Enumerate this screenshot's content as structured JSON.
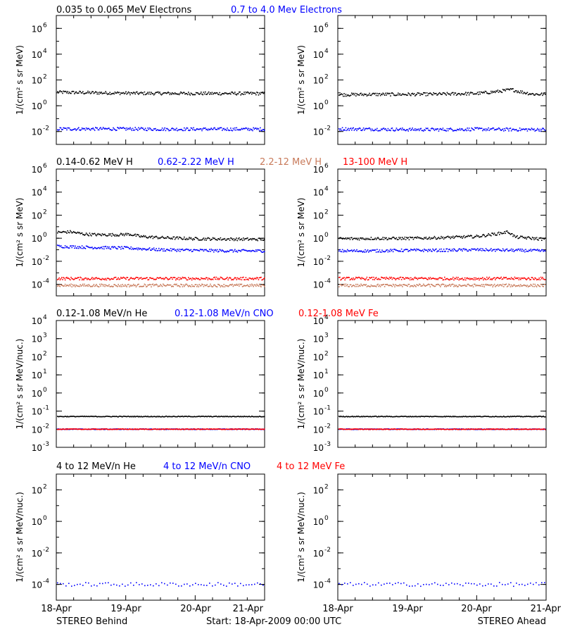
{
  "chart_data": [
    {
      "type": "scatter",
      "row": 0,
      "column": "left",
      "legend": [
        "0.035 to 0.065 MeV Electrons",
        "0.7 to 4.0 Mev Electrons"
      ],
      "ylabel": "1/(cm² s sr MeV)",
      "yscale": "log",
      "ylim_exp": [
        -3,
        7
      ],
      "yticks": [
        {
          "e": -2,
          "label": "10"
        },
        {
          "e": 0,
          "label": "10"
        },
        {
          "e": 2,
          "label": "10"
        },
        {
          "e": 4,
          "label": "10"
        },
        {
          "e": 6,
          "label": "10"
        }
      ],
      "ytick_exponents": [
        "-2",
        "0",
        "2",
        "4",
        "6"
      ],
      "xlim_days": [
        0,
        3
      ],
      "series": [
        {
          "color": "#000000",
          "points": [
            [
              0,
              1.05
            ],
            [
              0.3,
              1.02
            ],
            [
              0.6,
              1.0
            ],
            [
              0.9,
              0.98
            ],
            [
              1.2,
              0.96
            ],
            [
              1.5,
              0.96
            ],
            [
              1.8,
              0.95
            ],
            [
              2.1,
              0.95
            ],
            [
              2.4,
              0.95
            ],
            [
              2.7,
              0.95
            ],
            [
              3.0,
              0.95
            ]
          ]
        },
        {
          "color": "#0000ff",
          "points": [
            [
              0,
              -1.8
            ],
            [
              0.5,
              -1.8
            ],
            [
              1.0,
              -1.8
            ],
            [
              1.5,
              -1.82
            ],
            [
              2.0,
              -1.82
            ],
            [
              2.5,
              -1.82
            ],
            [
              3.0,
              -1.82
            ]
          ]
        }
      ]
    },
    {
      "type": "scatter",
      "row": 0,
      "column": "right",
      "ylabel": "1/(cm² s sr MeV)",
      "yscale": "log",
      "ylim_exp": [
        -3,
        7
      ],
      "yticks": [
        {
          "e": -2,
          "label": "10"
        },
        {
          "e": 0,
          "label": "10"
        },
        {
          "e": 2,
          "label": "10"
        },
        {
          "e": 4,
          "label": "10"
        },
        {
          "e": 6,
          "label": "10"
        }
      ],
      "ytick_exponents": [
        "-2",
        "0",
        "2",
        "4",
        "6"
      ],
      "xlim_days": [
        0,
        3
      ],
      "series": [
        {
          "color": "#000000",
          "points": [
            [
              0,
              0.85
            ],
            [
              0.5,
              0.88
            ],
            [
              1.0,
              0.88
            ],
            [
              1.5,
              0.9
            ],
            [
              2.0,
              0.95
            ],
            [
              2.3,
              1.1
            ],
            [
              2.5,
              1.25
            ],
            [
              2.6,
              1.1
            ],
            [
              2.8,
              0.9
            ],
            [
              3.0,
              0.88
            ]
          ]
        },
        {
          "color": "#0000ff",
          "points": [
            [
              0,
              -1.8
            ],
            [
              0.5,
              -1.82
            ],
            [
              1.0,
              -1.85
            ],
            [
              1.5,
              -1.85
            ],
            [
              2.0,
              -1.82
            ],
            [
              2.5,
              -1.85
            ],
            [
              3.0,
              -1.85
            ]
          ]
        }
      ]
    },
    {
      "type": "scatter",
      "row": 1,
      "column": "left",
      "legend": [
        "0.14-0.62 MeV H",
        "0.62-2.22 MeV H",
        "2.2-12 MeV H",
        "13-100 MeV H"
      ],
      "ylabel": "1/(cm² s sr MeV)",
      "yscale": "log",
      "ylim_exp": [
        -5,
        6
      ],
      "yticks": [
        {
          "e": -4,
          "label": "10"
        },
        {
          "e": -2,
          "label": "10"
        },
        {
          "e": 0,
          "label": "10"
        },
        {
          "e": 2,
          "label": "10"
        },
        {
          "e": 4,
          "label": "10"
        },
        {
          "e": 6,
          "label": "10"
        }
      ],
      "ytick_exponents": [
        "-4",
        "-2",
        "0",
        "2",
        "4",
        "6"
      ],
      "xlim_days": [
        0,
        3
      ],
      "series": [
        {
          "color": "#000000",
          "points": [
            [
              0,
              0.5
            ],
            [
              0.2,
              0.55
            ],
            [
              0.4,
              0.35
            ],
            [
              0.6,
              0.3
            ],
            [
              0.9,
              0.3
            ],
            [
              1.05,
              0.35
            ],
            [
              1.2,
              0.15
            ],
            [
              1.5,
              0.05
            ],
            [
              2.0,
              -0.05
            ],
            [
              2.5,
              -0.08
            ],
            [
              3.0,
              -0.1
            ]
          ]
        },
        {
          "color": "#0000ff",
          "points": [
            [
              0,
              -0.7
            ],
            [
              0.5,
              -0.8
            ],
            [
              1.0,
              -0.85
            ],
            [
              1.5,
              -1.0
            ],
            [
              2.0,
              -1.05
            ],
            [
              2.5,
              -1.1
            ],
            [
              3.0,
              -1.1
            ]
          ]
        },
        {
          "color": "#c87a5a",
          "points": [
            [
              0,
              -4.1
            ],
            [
              1.0,
              -4.1
            ],
            [
              2.0,
              -4.1
            ],
            [
              3.0,
              -4.1
            ]
          ]
        },
        {
          "color": "#ff0000",
          "points": [
            [
              0,
              -3.5
            ],
            [
              1.0,
              -3.5
            ],
            [
              2.0,
              -3.5
            ],
            [
              3.0,
              -3.5
            ]
          ]
        }
      ]
    },
    {
      "type": "scatter",
      "row": 1,
      "column": "right",
      "ylabel": "1/(cm² s sr MeV)",
      "yscale": "log",
      "ylim_exp": [
        -5,
        6
      ],
      "yticks": [
        {
          "e": -4,
          "label": "10"
        },
        {
          "e": -2,
          "label": "10"
        },
        {
          "e": 0,
          "label": "10"
        },
        {
          "e": 2,
          "label": "10"
        },
        {
          "e": 4,
          "label": "10"
        },
        {
          "e": 6,
          "label": "10"
        }
      ],
      "ytick_exponents": [
        "-4",
        "-2",
        "0",
        "2",
        "4",
        "6"
      ],
      "xlim_days": [
        0,
        3
      ],
      "series": [
        {
          "color": "#000000",
          "points": [
            [
              0,
              -0.05
            ],
            [
              0.5,
              -0.02
            ],
            [
              1.0,
              -0.02
            ],
            [
              1.5,
              0.05
            ],
            [
              2.0,
              0.15
            ],
            [
              2.3,
              0.4
            ],
            [
              2.45,
              0.55
            ],
            [
              2.55,
              0.1
            ],
            [
              3.0,
              -0.1
            ]
          ]
        },
        {
          "color": "#0000ff",
          "points": [
            [
              0,
              -1.1
            ],
            [
              0.5,
              -1.1
            ],
            [
              1.0,
              -1.05
            ],
            [
              1.5,
              -1.05
            ],
            [
              2.0,
              -1.0
            ],
            [
              2.5,
              -1.05
            ],
            [
              3.0,
              -1.1
            ]
          ]
        },
        {
          "color": "#c87a5a",
          "points": [
            [
              0,
              -4.1
            ],
            [
              1.0,
              -4.1
            ],
            [
              2.0,
              -4.1
            ],
            [
              3.0,
              -4.1
            ]
          ]
        },
        {
          "color": "#ff0000",
          "points": [
            [
              0,
              -3.5
            ],
            [
              1.0,
              -3.5
            ],
            [
              2.0,
              -3.5
            ],
            [
              3.0,
              -3.5
            ]
          ]
        }
      ]
    },
    {
      "type": "scatter",
      "row": 2,
      "column": "left",
      "legend": [
        "0.12-1.08 MeV/n He",
        "0.12-1.08 MeV/n CNO",
        "0.12-1.08 MeV Fe"
      ],
      "ylabel": "1/(cm² s sr MeV/nuc.)",
      "yscale": "log",
      "ylim_exp": [
        -3,
        4
      ],
      "yticks": [
        {
          "e": -3,
          "label": "10"
        },
        {
          "e": -2,
          "label": "10"
        },
        {
          "e": -1,
          "label": "10"
        },
        {
          "e": 0,
          "label": "10"
        },
        {
          "e": 1,
          "label": "10"
        },
        {
          "e": 2,
          "label": "10"
        },
        {
          "e": 3,
          "label": "10"
        },
        {
          "e": 4,
          "label": "10"
        }
      ],
      "ytick_exponents": [
        "-3",
        "-2",
        "-1",
        "0",
        "1",
        "2",
        "3",
        "4"
      ],
      "xlim_days": [
        0,
        3
      ],
      "series": [
        {
          "color": "#000000",
          "points": [
            [
              0,
              -1.3
            ],
            [
              1.0,
              -1.3
            ],
            [
              2.0,
              -1.3
            ],
            [
              3.0,
              -1.3
            ]
          ]
        },
        {
          "color": "#0000ff",
          "points": [
            [
              0,
              -2.0
            ],
            [
              1.0,
              -2.0
            ],
            [
              2.0,
              -2.0
            ],
            [
              3.0,
              -2.0
            ]
          ]
        },
        {
          "color": "#ff0000",
          "points": [
            [
              0,
              -2.0
            ],
            [
              1.0,
              -2.0
            ],
            [
              2.0,
              -2.0
            ],
            [
              3.0,
              -2.0
            ]
          ]
        }
      ]
    },
    {
      "type": "scatter",
      "row": 2,
      "column": "right",
      "ylabel": "1/(cm² s sr MeV/nuc.)",
      "yscale": "log",
      "ylim_exp": [
        -3,
        4
      ],
      "yticks": [
        {
          "e": -3,
          "label": "10"
        },
        {
          "e": -2,
          "label": "10"
        },
        {
          "e": -1,
          "label": "10"
        },
        {
          "e": 0,
          "label": "10"
        },
        {
          "e": 1,
          "label": "10"
        },
        {
          "e": 2,
          "label": "10"
        },
        {
          "e": 3,
          "label": "10"
        },
        {
          "e": 4,
          "label": "10"
        }
      ],
      "ytick_exponents": [
        "-3",
        "-2",
        "-1",
        "0",
        "1",
        "2",
        "3",
        "4"
      ],
      "xlim_days": [
        0,
        3
      ],
      "series": [
        {
          "color": "#000000",
          "points": [
            [
              0,
              -1.3
            ],
            [
              1.0,
              -1.3
            ],
            [
              2.0,
              -1.3
            ],
            [
              3.0,
              -1.3
            ]
          ]
        },
        {
          "color": "#0000ff",
          "points": [
            [
              0,
              -2.0
            ],
            [
              1.0,
              -2.0
            ],
            [
              2.0,
              -2.0
            ],
            [
              3.0,
              -2.0
            ]
          ]
        },
        {
          "color": "#ff0000",
          "points": [
            [
              0,
              -2.0
            ],
            [
              1.0,
              -2.0
            ],
            [
              2.0,
              -2.0
            ],
            [
              3.0,
              -2.0
            ]
          ]
        }
      ]
    },
    {
      "type": "scatter",
      "row": 3,
      "column": "left",
      "legend": [
        "4 to 12 MeV/n He",
        "4 to 12 MeV/n CNO",
        "4 to 12 MeV Fe"
      ],
      "ylabel": "1/(cm² s sr MeV/nuc.)",
      "yscale": "log",
      "ylim_exp": [
        -5,
        3
      ],
      "yticks": [
        {
          "e": -4,
          "label": "10"
        },
        {
          "e": -2,
          "label": "10"
        },
        {
          "e": 0,
          "label": "10"
        },
        {
          "e": 2,
          "label": "10"
        }
      ],
      "ytick_exponents": [
        "-4",
        "-2",
        "0",
        "2"
      ],
      "xlim_days": [
        0,
        3
      ],
      "series": [
        {
          "color": "#0000ff",
          "points": [
            [
              0,
              -4.0
            ],
            [
              1.0,
              -4.0
            ],
            [
              2.0,
              -4.0
            ],
            [
              3.0,
              -4.0
            ]
          ]
        }
      ]
    },
    {
      "type": "scatter",
      "row": 3,
      "column": "right",
      "ylabel": "1/(cm² s sr MeV/nuc.)",
      "yscale": "log",
      "ylim_exp": [
        -5,
        3
      ],
      "yticks": [
        {
          "e": -4,
          "label": "10"
        },
        {
          "e": -2,
          "label": "10"
        },
        {
          "e": 0,
          "label": "10"
        },
        {
          "e": 2,
          "label": "10"
        }
      ],
      "ytick_exponents": [
        "-4",
        "-2",
        "0",
        "2"
      ],
      "xlim_days": [
        0,
        3
      ],
      "series": [
        {
          "color": "#0000ff",
          "points": [
            [
              0,
              -4.0
            ],
            [
              1.0,
              -4.0
            ],
            [
              2.0,
              -4.0
            ],
            [
              3.0,
              -4.0
            ]
          ]
        }
      ]
    }
  ],
  "legend_colors": {
    "row0": [
      "#000000",
      "#0000ff"
    ],
    "row1": [
      "#000000",
      "#0000ff",
      "#c87a5a",
      "#ff0000"
    ],
    "row2": [
      "#000000",
      "#0000ff",
      "#ff0000"
    ],
    "row3": [
      "#000000",
      "#0000ff",
      "#ff0000"
    ]
  },
  "xaxis": {
    "tick_labels": [
      "18-Apr",
      "19-Apr",
      "20-Apr",
      "21-Apr"
    ]
  },
  "footer": {
    "left": "STEREO Behind",
    "center": "Start: 18-Apr-2009 00:00 UTC",
    "right": "STEREO Ahead"
  }
}
